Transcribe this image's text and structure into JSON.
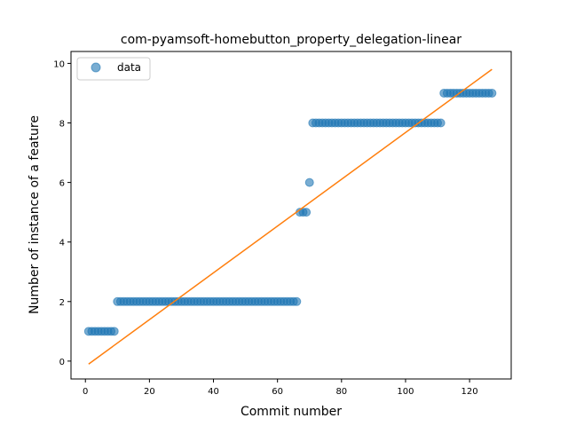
{
  "chart_data": {
    "type": "scatter",
    "title": "com-pyamsoft-homebutton_property_delegation-linear",
    "xlabel": "Commit number",
    "ylabel": "Number of instance of a feature",
    "xlim": [
      -4.5,
      133
    ],
    "ylim": [
      -0.6,
      10.4
    ],
    "xticks": [
      0,
      20,
      40,
      60,
      80,
      100,
      120
    ],
    "yticks": [
      0,
      2,
      4,
      6,
      8,
      10
    ],
    "grid": false,
    "legend": {
      "placement": "top-left",
      "entries": [
        "data"
      ]
    },
    "colors": {
      "data": "#1f77b4",
      "fit": "#ff7f0e"
    },
    "series": [
      {
        "name": "data",
        "kind": "scatter",
        "segments": [
          {
            "x_from": 1,
            "x_to": 9,
            "y": 1
          },
          {
            "x_from": 10,
            "x_to": 66,
            "y": 2
          },
          {
            "x_from": 67,
            "x_to": 69,
            "y": 5
          },
          {
            "x_from": 70,
            "x_to": 70,
            "y": 6
          },
          {
            "x_from": 71,
            "x_to": 111,
            "y": 8
          },
          {
            "x_from": 112,
            "x_to": 127,
            "y": 9
          }
        ]
      },
      {
        "kind": "line",
        "x": [
          1,
          127
        ],
        "y": [
          -0.1,
          9.8
        ]
      }
    ]
  }
}
